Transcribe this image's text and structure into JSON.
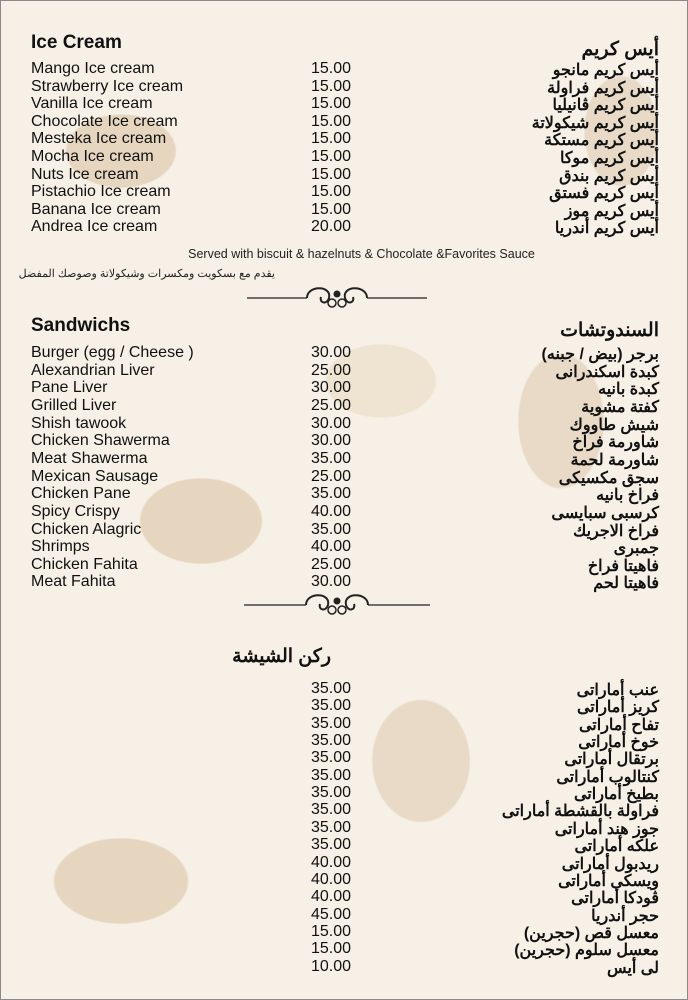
{
  "ice_cream": {
    "title_en": "Ice Cream",
    "title_ar": "أيس كريم",
    "items": [
      {
        "en": "Mango Ice cream",
        "price": "15.00",
        "ar": "أيس كريم مانجو"
      },
      {
        "en": "Strawberry Ice cream",
        "price": "15.00",
        "ar": "أيس كريم فراولة"
      },
      {
        "en": "Vanilla Ice cream",
        "price": "15.00",
        "ar": "أيس كريم ڤانيليا"
      },
      {
        "en": "Chocolate Ice cream",
        "price": "15.00",
        "ar": "أيس كريم شيكولاتة"
      },
      {
        "en": "Mesteka Ice cream",
        "price": "15.00",
        "ar": "أيس كريم مستكة"
      },
      {
        "en": "Mocha Ice cream",
        "price": "15.00",
        "ar": "أيس كريم موكا"
      },
      {
        "en": "Nuts Ice cream",
        "price": "15.00",
        "ar": "أيس كريم بندق"
      },
      {
        "en": "Pistachio Ice cream",
        "price": "15.00",
        "ar": "أيس كريم فستق"
      },
      {
        "en": "Banana Ice cream",
        "price": "15.00",
        "ar": "أيس كريم موز"
      },
      {
        "en": "Andrea Ice cream",
        "price": "20.00",
        "ar": "أيس كريم أندريا"
      }
    ],
    "note_en": "Served with biscuit & hazelnuts & Chocolate &Favorites Sauce",
    "note_ar": "يقدم مع بسكويت ومكسرات وشيكولاتة وصوصك المفضل"
  },
  "sandwiches": {
    "title_en": "Sandwichs",
    "title_ar": "السندوتشات",
    "items": [
      {
        "en": "Burger (egg / Cheese )",
        "price": "30.00",
        "ar": "برجر (بيض / جبنه)"
      },
      {
        "en": "Alexandrian Liver",
        "price": "25.00",
        "ar": "كبدة اسكندرانى"
      },
      {
        "en": "Pane Liver",
        "price": "30.00",
        "ar": "كبدة بانيه"
      },
      {
        "en": "Grilled Liver",
        "price": "25.00",
        "ar": "كفتة مشوية"
      },
      {
        "en": "Shish tawook",
        "price": "30.00",
        "ar": "شيش طاووك"
      },
      {
        "en": "Chicken Shawerma",
        "price": "30.00",
        "ar": "شاورمة فراخ"
      },
      {
        "en": "Meat Shawerma",
        "price": "35.00",
        "ar": "شاورمة لحمة"
      },
      {
        "en": "Mexican Sausage",
        "price": "25.00",
        "ar": "سجق مكسيكى"
      },
      {
        "en": "Chicken Pane",
        "price": "35.00",
        "ar": "فراخ بانيه"
      },
      {
        "en": "Spicy Crispy",
        "price": "40.00",
        "ar": "كرسبى سبايسى"
      },
      {
        "en": "Chicken Alagric",
        "price": "35.00",
        "ar": "فراخ الاجريك"
      },
      {
        "en": "Shrimps",
        "price": "40.00",
        "ar": "جمبرى"
      },
      {
        "en": "Chicken Fahita",
        "price": "25.00",
        "ar": "فاهيتا فراخ"
      },
      {
        "en": "Meat Fahita",
        "price": "30.00",
        "ar": "فاهيتا لحم"
      }
    ]
  },
  "shisha": {
    "title_ar": "ركن الشيشة",
    "items": [
      {
        "price": "35.00",
        "ar": "عنب أماراتى"
      },
      {
        "price": "35.00",
        "ar": "كريز أماراتى"
      },
      {
        "price": "35.00",
        "ar": "تفاح أماراتى"
      },
      {
        "price": "35.00",
        "ar": "خوخ أماراتى"
      },
      {
        "price": "35.00",
        "ar": "برتقال أماراتى"
      },
      {
        "price": "35.00",
        "ar": "كنتالوب أماراتى"
      },
      {
        "price": "35.00",
        "ar": "بطيخ أماراتى"
      },
      {
        "price": "35.00",
        "ar": "فراولة بالقشطة أماراتى"
      },
      {
        "price": "35.00",
        "ar": "جوز هند أماراتى"
      },
      {
        "price": "35.00",
        "ar": "علكه أماراتى"
      },
      {
        "price": "40.00",
        "ar": "ريدبول أماراتى"
      },
      {
        "price": "40.00",
        "ar": "ويسكى أماراتى"
      },
      {
        "price": "40.00",
        "ar": "ڤودكا أماراتى"
      },
      {
        "price": "45.00",
        "ar": "حجر أندريا"
      },
      {
        "price": "15.00",
        "ar": "معسل قص (حجرين)"
      },
      {
        "price": "15.00",
        "ar": "معسل سلوم (حجرين)"
      },
      {
        "price": "10.00",
        "ar": "لى أيس"
      }
    ]
  },
  "colors": {
    "background": "#f6f0e6",
    "pattern": "#e6d6c0",
    "text": "#111111"
  }
}
